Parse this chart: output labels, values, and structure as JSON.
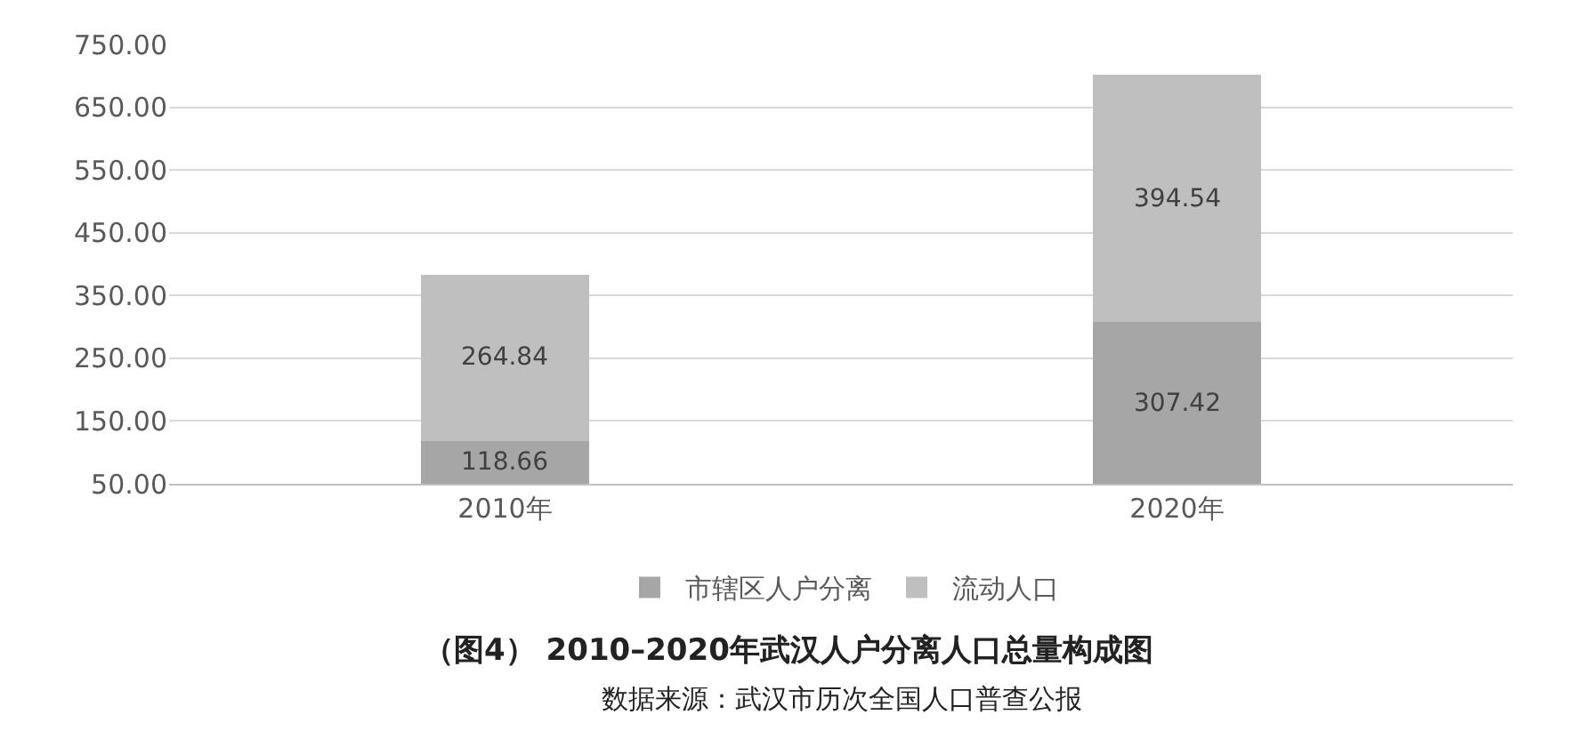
{
  "chart_data": {
    "type": "bar",
    "stacked": true,
    "title": "（图4） 2010–2020年武汉人户分离人口总量构成图",
    "annotations": [
      "数据来源：武汉市历次全国人口普查公报"
    ],
    "categories": [
      "2010年",
      "2020年"
    ],
    "series": [
      {
        "name": "市辖区人户分离",
        "color": "#a6a6a6",
        "values": [
          118.66,
          307.42
        ]
      },
      {
        "name": "流动人口",
        "color": "#bfbfbf",
        "values": [
          264.84,
          394.54
        ]
      }
    ],
    "ylim": [
      50,
      750
    ],
    "yticks": [
      {
        "value": 50,
        "label": "50.00"
      },
      {
        "value": 150,
        "label": "150.00"
      },
      {
        "value": 250,
        "label": "250.00"
      },
      {
        "value": 350,
        "label": "350.00"
      },
      {
        "value": 450,
        "label": "450.00"
      },
      {
        "value": 550,
        "label": "550.00"
      },
      {
        "value": 650,
        "label": "650.00"
      },
      {
        "value": 750,
        "label": "750.00"
      }
    ],
    "grid": "y",
    "legend": "bottom",
    "data_labels": true
  }
}
